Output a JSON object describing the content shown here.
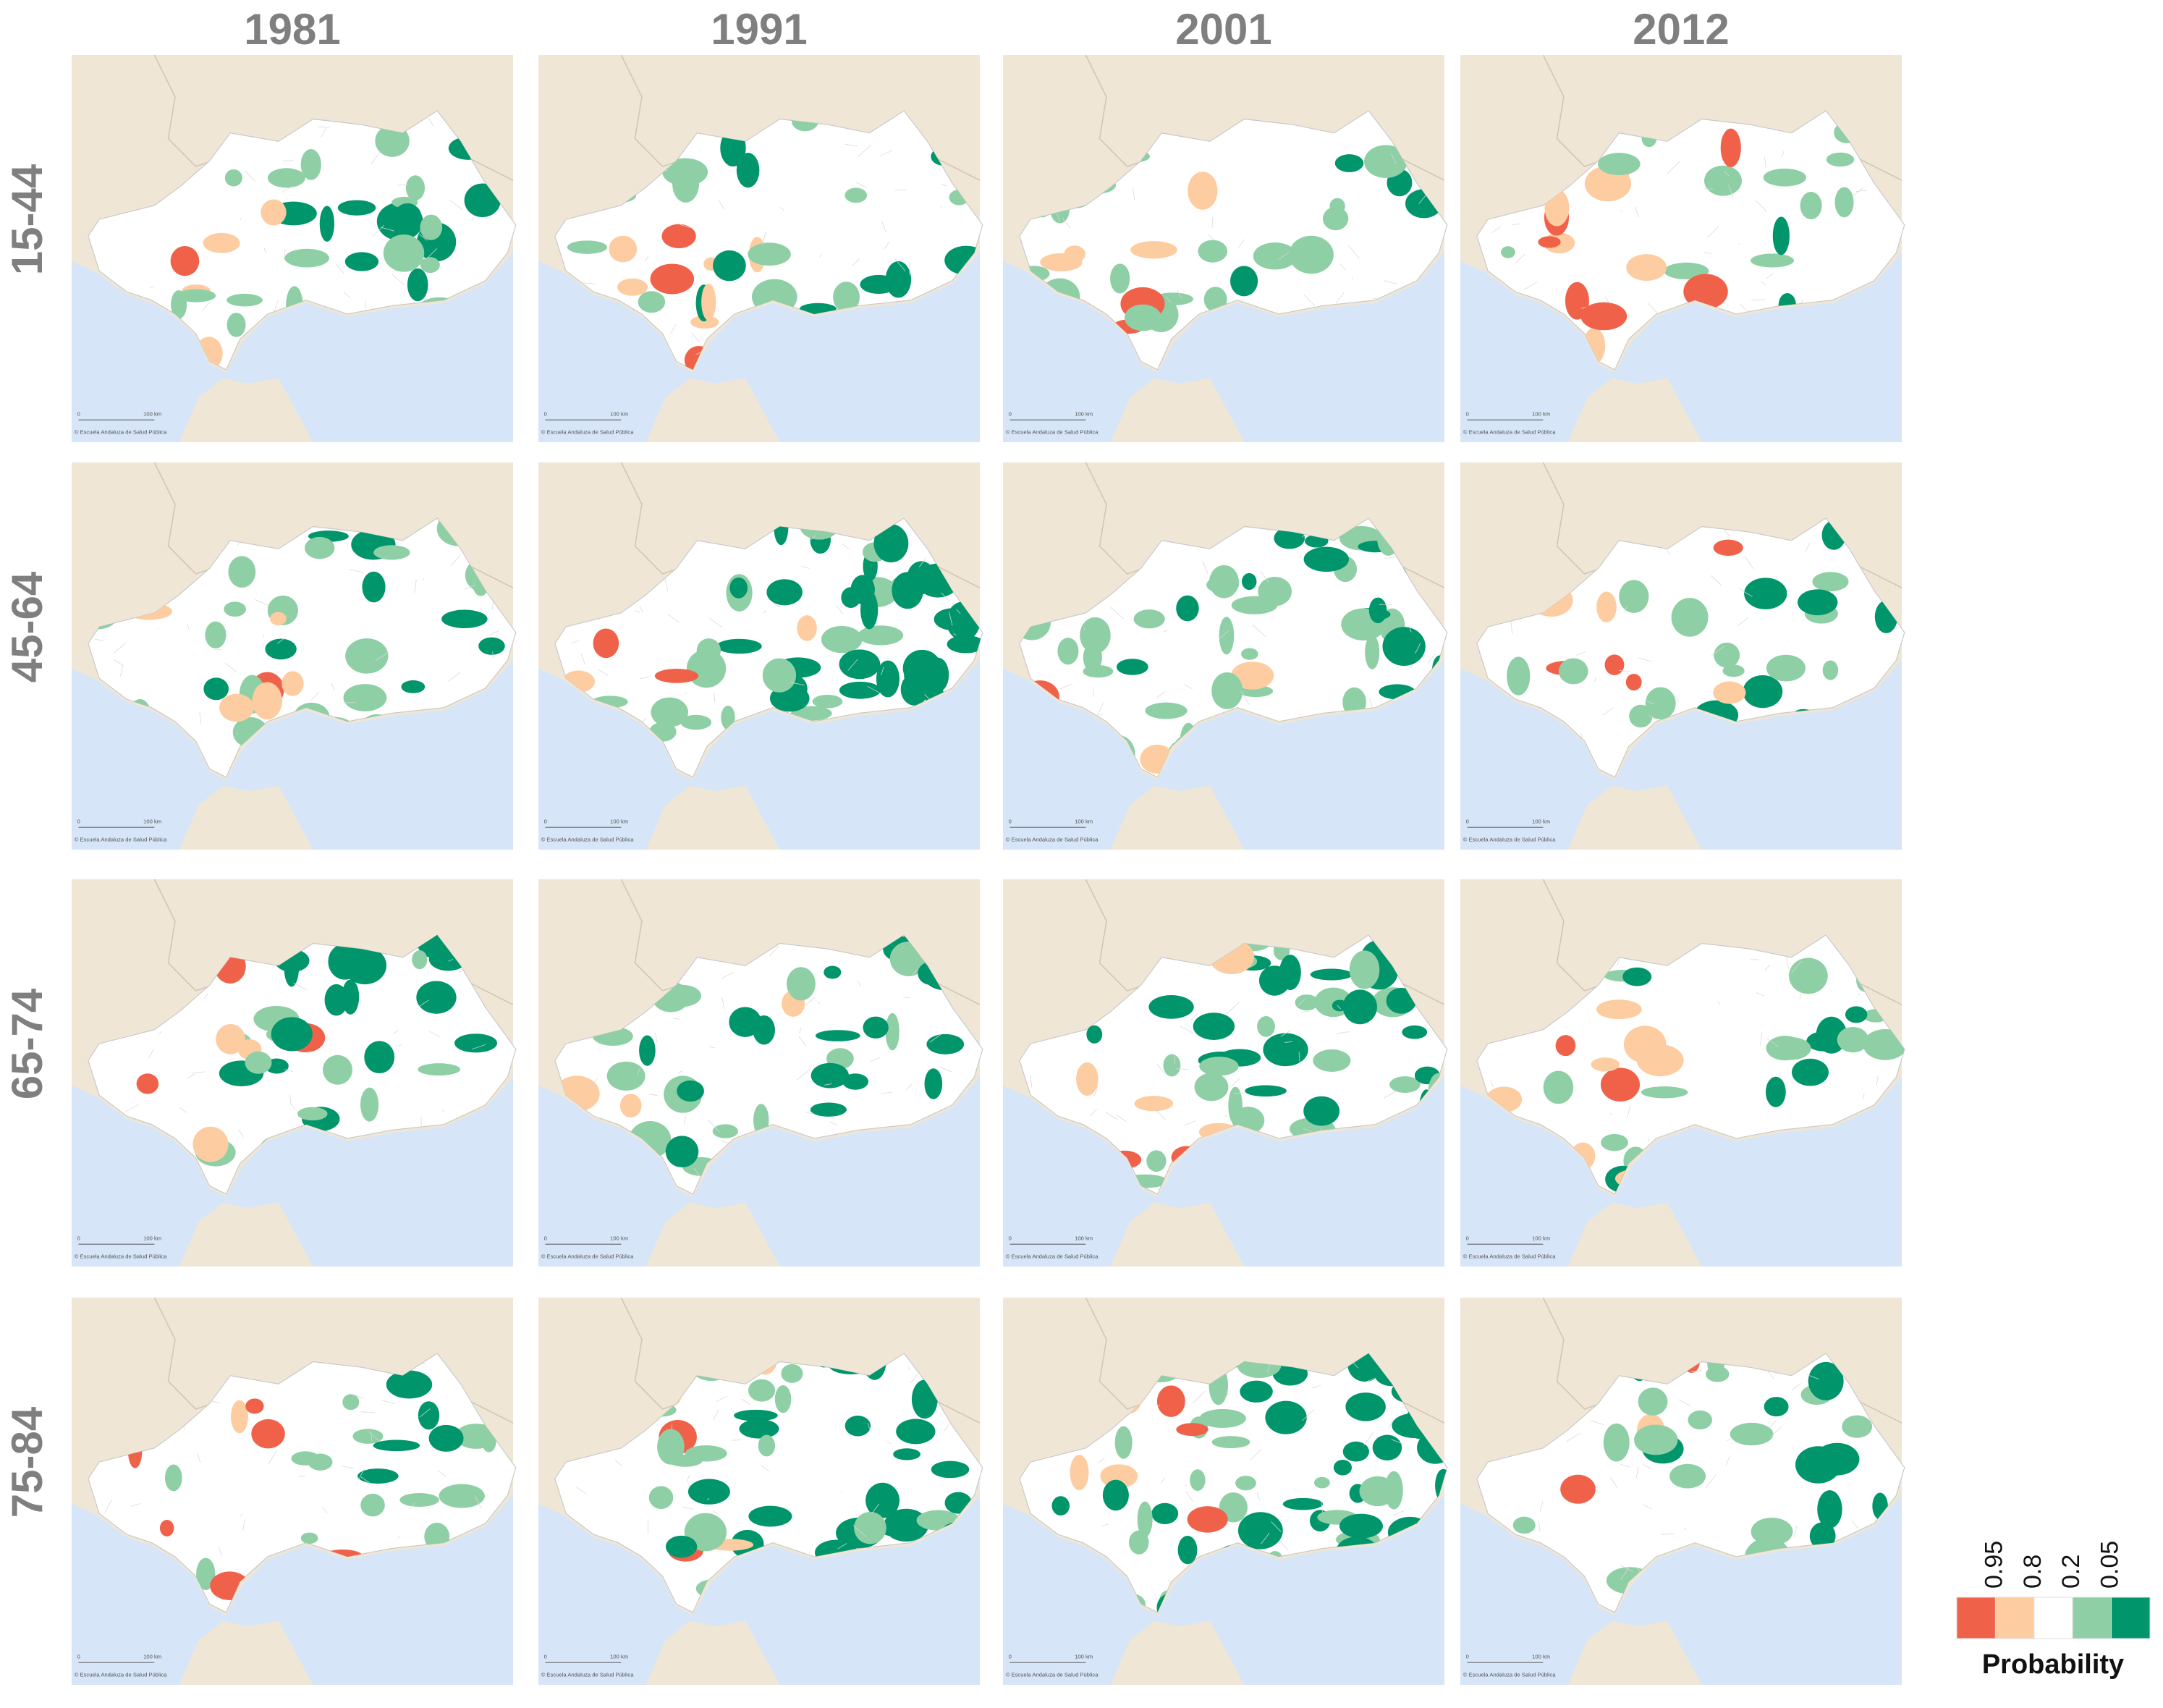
{
  "columns": [
    "1981",
    "1991",
    "2001",
    "2012"
  ],
  "rows": [
    "15-44",
    "45-64",
    "65-74",
    "75-84"
  ],
  "attribution": "© Escuela Andaluza de Salud Pública",
  "scale_labels": [
    "0",
    "100 km"
  ],
  "legend": {
    "title": "Probability",
    "ticks": [
      "0.95",
      "0.8",
      "0.2",
      "0.05"
    ],
    "colors": [
      "#f0614a",
      "#fdcca0",
      "#ffffff",
      "#8fcfa5",
      "#00956a"
    ]
  }
}
